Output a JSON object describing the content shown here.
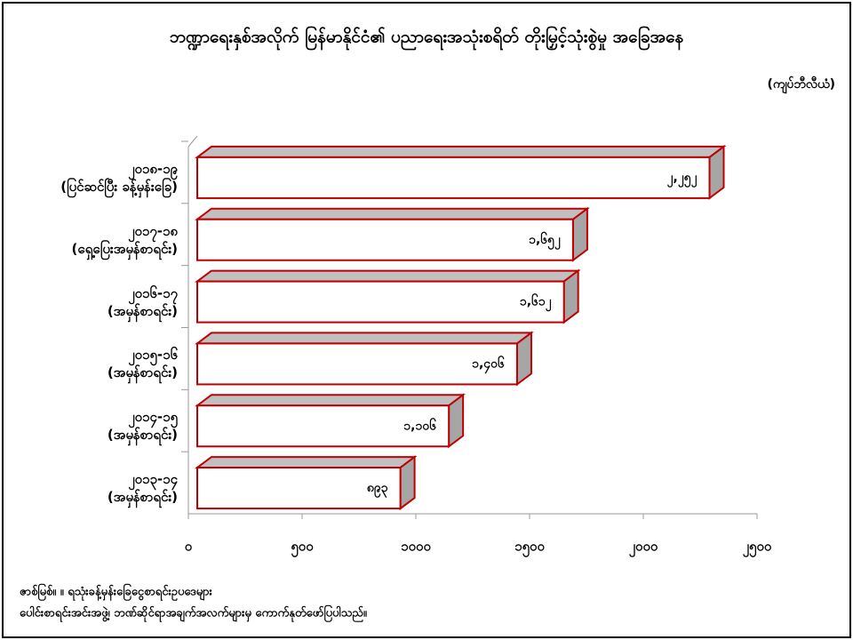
{
  "chart_data": {
    "type": "bar3d",
    "title": "ဘဏ္ဍာရေးနှစ်အလိုက် မြန်မာနိုင်ငံ၏ ပညာရေးအသုံးစရိတ် တိုးမြှင့်သုံးစွဲမှု အခြေအနေ",
    "unit_label": "(ကျပ်ဘီလီယံ)",
    "categories": [
      "၂၀၁၈-၁၉\n(ပြင်ဆင်ပြီး ခန့်မှန်းခြေ)",
      "၂၀၁၇-၁၈\n(ရှေ့ပြေးအမှန်စာရင်း)",
      "၂၀၁၆-၁၇\n(အမှန်စာရင်း)",
      "၂၀၁၅-၁၆\n(အမှန်စာရင်း)",
      "၂၀၁၄-၁၅\n(အမှန်စာရင်း)",
      "၂၀၁၃-၁၄\n(အမှန်စာရင်း)"
    ],
    "values": [
      2252,
      1652,
      1612,
      1406,
      1106,
      893
    ],
    "value_labels": [
      "၂,၂၅၂",
      "၁,၆၅၂",
      "၁,၆၁၂",
      "၁,၄၀၆",
      "၁,၁၀၆",
      "၈၉၃"
    ],
    "color": "#c00000",
    "xlim": [
      0,
      2500
    ],
    "xticks": [
      {
        "value": 0,
        "label": "၀"
      },
      {
        "value": 500,
        "label": "၅၀၀"
      },
      {
        "value": 1000,
        "label": "၁၀၀၀"
      },
      {
        "value": 1500,
        "label": "၁၅၀၀"
      },
      {
        "value": 2000,
        "label": "၂၀၀၀"
      },
      {
        "value": 2500,
        "label": "၂၅၀၀"
      }
    ],
    "source": [
      "ဇာစ်မြစ်။ ။ ရသုံးခန့်မှန်းခြေငွေစာရင်းဥပဒေများ",
      "ပေါင်းစာရင်းအင်းအဖွဲ့၊ ဘဏ်ဆိုင်ရာအချက်အလက်များမှ ကောက်နုတ်ဖော်ပြပါသည်။"
    ]
  }
}
